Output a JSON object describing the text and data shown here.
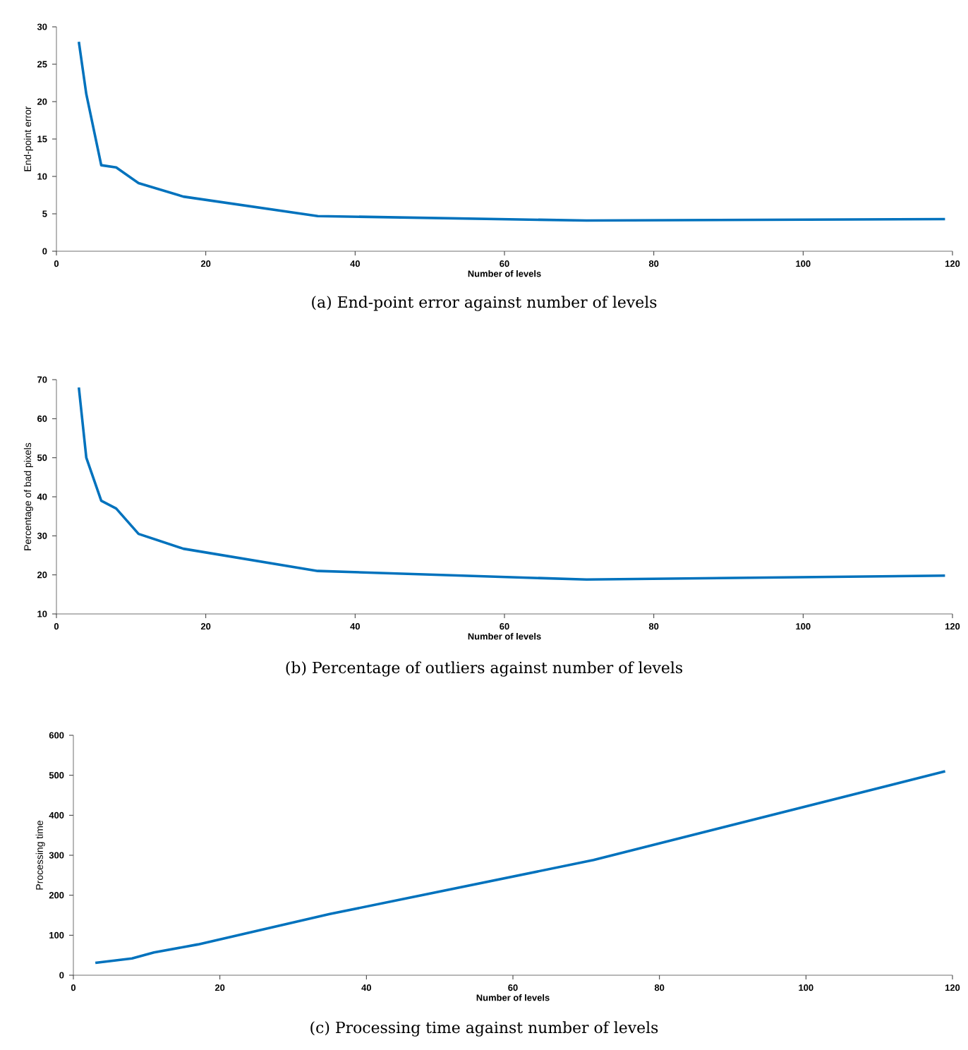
{
  "chart_data": [
    {
      "type": "line",
      "xlabel": "Number of levels",
      "ylabel": "End-point error",
      "annotations": [
        "(a)  End-point error against number of levels"
      ],
      "xlim": [
        0,
        120
      ],
      "ylim": [
        0,
        30
      ],
      "xticks": [
        0,
        20,
        40,
        60,
        80,
        100,
        120
      ],
      "yticks": [
        0,
        5,
        10,
        15,
        20,
        25,
        30
      ],
      "grid": false,
      "marker": "none",
      "line_style": "solid",
      "series": [
        {
          "color": "#0072bd",
          "x": [
            3,
            4,
            6,
            8,
            11,
            17,
            35,
            71,
            119
          ],
          "values": [
            28,
            21,
            11.5,
            11.2,
            9.1,
            7.3,
            4.7,
            4.1,
            4.3
          ]
        }
      ]
    },
    {
      "type": "line",
      "xlabel": "Number of levels",
      "ylabel": "Percentage of bad pixels",
      "annotations": [
        "(b)  Percentage of outliers against number of levels"
      ],
      "xlim": [
        0,
        120
      ],
      "ylim": [
        10,
        70
      ],
      "xticks": [
        0,
        20,
        40,
        60,
        80,
        100,
        120
      ],
      "yticks": [
        10,
        20,
        30,
        40,
        50,
        60,
        70
      ],
      "grid": false,
      "marker": "none",
      "line_style": "solid",
      "series": [
        {
          "color": "#0072bd",
          "x": [
            3,
            4,
            6,
            8,
            11,
            17,
            35,
            71,
            119
          ],
          "values": [
            68,
            50,
            39,
            37,
            30.5,
            26.7,
            21,
            18.8,
            19.8
          ]
        }
      ]
    },
    {
      "type": "line",
      "xlabel": "Number of levels",
      "ylabel": "Processing time",
      "annotations": [
        "(c)  Processing time against number of levels"
      ],
      "xlim": [
        0,
        120
      ],
      "ylim": [
        0,
        600
      ],
      "xticks": [
        0,
        20,
        40,
        60,
        80,
        100,
        120
      ],
      "yticks": [
        0,
        100,
        200,
        300,
        400,
        500,
        600
      ],
      "grid": false,
      "marker": "none",
      "line_style": "solid",
      "series": [
        {
          "color": "#0072bd",
          "x": [
            3,
            8,
            11,
            17,
            35,
            71,
            119
          ],
          "values": [
            31,
            42,
            57,
            77,
            153,
            288,
            510
          ]
        }
      ]
    }
  ]
}
